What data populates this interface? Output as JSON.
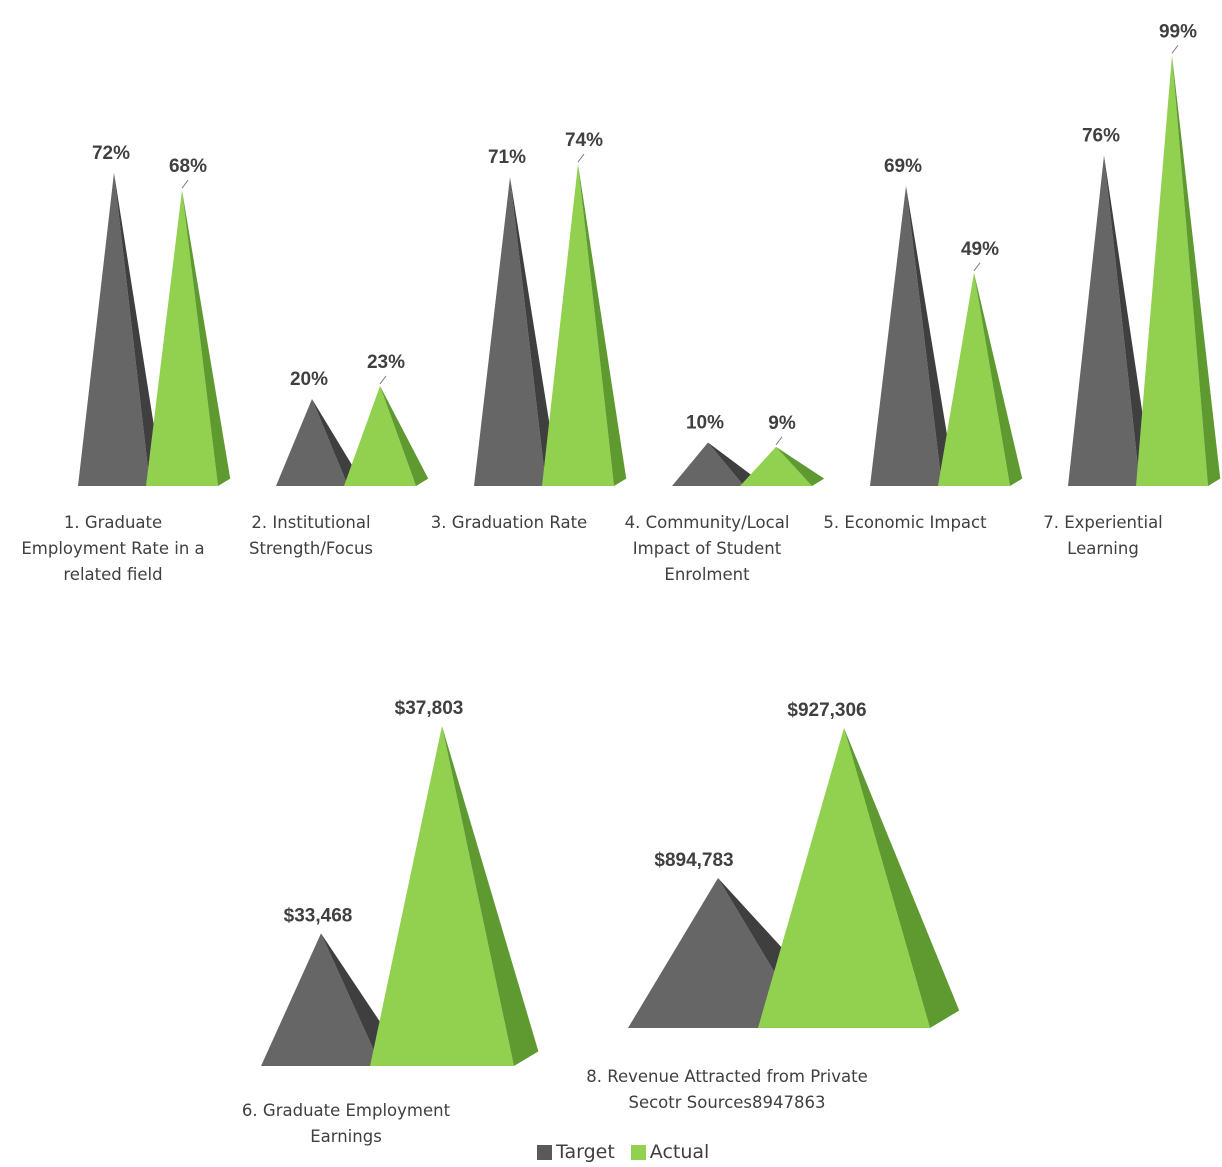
{
  "colors": {
    "target": "#666666",
    "target_dark": "#3f3f3f",
    "actual": "#92d050",
    "actual_dark": "#5f9a30",
    "text": "#404040"
  },
  "chart_data": [
    {
      "type": "bar",
      "shape": "pyramid-3d",
      "series_names": [
        "Target",
        "Actual"
      ],
      "ylim": [
        0,
        1
      ],
      "categories": [
        {
          "label": "1. Graduate Employment Rate in a related field",
          "target": 0.72,
          "actual": 0.68,
          "target_label": "72%",
          "actual_label": "68%"
        },
        {
          "label": "2. Institutional Strength/Focus",
          "target": 0.2,
          "actual": 0.23,
          "target_label": "20%",
          "actual_label": "23%"
        },
        {
          "label": "3. Graduation Rate",
          "target": 0.71,
          "actual": 0.74,
          "target_label": "71%",
          "actual_label": "74%"
        },
        {
          "label": "4. Community/Local Impact of Student Enrolment",
          "target": 0.1,
          "actual": 0.09,
          "target_label": "10%",
          "actual_label": "9%"
        },
        {
          "label": "5. Economic Impact",
          "target": 0.69,
          "actual": 0.49,
          "target_label": "69%",
          "actual_label": "49%"
        },
        {
          "label": "7. Experiential Learning",
          "target": 0.76,
          "actual": 0.99,
          "target_label": "76%",
          "actual_label": "99%"
        }
      ]
    },
    {
      "type": "bar",
      "shape": "pyramid-3d",
      "series_names": [
        "Target",
        "Actual"
      ],
      "categories": [
        {
          "label": "6. Graduate Employment Earnings",
          "target": 33468,
          "actual": 37803,
          "target_label": "$33,468",
          "actual_label": "$37,803"
        }
      ]
    },
    {
      "type": "bar",
      "shape": "pyramid-3d",
      "series_names": [
        "Target",
        "Actual"
      ],
      "categories": [
        {
          "label": "8. Revenue Attracted from Private Secotr Sources8947863",
          "target": 894783,
          "actual": 927306,
          "target_label": "$894,783",
          "actual_label": "$927,306"
        }
      ]
    }
  ],
  "legend": {
    "items": [
      {
        "label": "Target",
        "color": "#595959"
      },
      {
        "label": "Actual",
        "color": "#92d050"
      }
    ]
  }
}
